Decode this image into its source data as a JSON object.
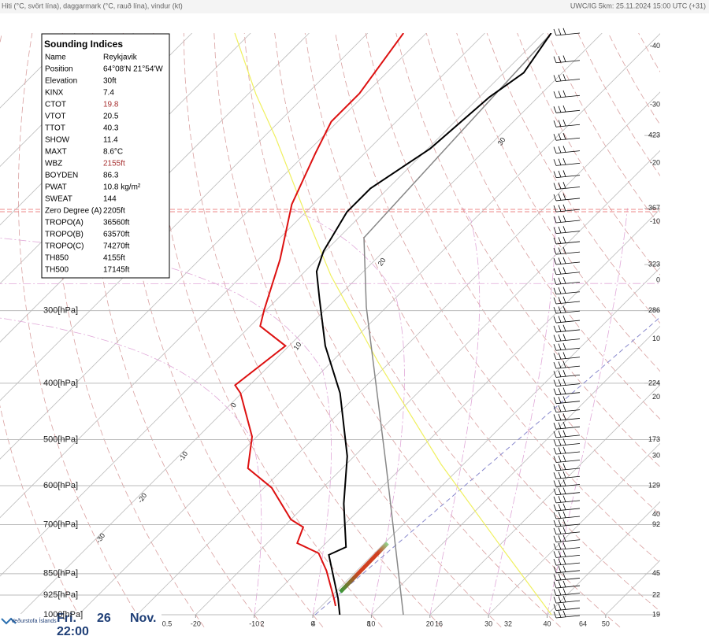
{
  "header": {
    "left": "Hiti (°C, svört lína), daggarmark (°C, rauð lína), vindur (kt)",
    "right": "UWC/IG 5km: 25.11.2024 15:00 UTC (+31)"
  },
  "indices": {
    "title": "Sounding Indices",
    "highlight_color": "#a83232",
    "highlighted": [
      "CTOT",
      "WBZ"
    ],
    "rows": [
      [
        "Name",
        "Reykjavik"
      ],
      [
        "Position",
        "64°08'N 21°54'W"
      ],
      [
        "Elevation",
        "30ft"
      ],
      [
        "KINX",
        "7.4"
      ],
      [
        "CTOT",
        "19.8"
      ],
      [
        "VTOT",
        "20.5"
      ],
      [
        "TTOT",
        "40.3"
      ],
      [
        "SHOW",
        "11.4"
      ],
      [
        "MAXT",
        "8.6°C"
      ],
      [
        "WBZ",
        "2155ft"
      ],
      [
        "BOYDEN",
        "86.3"
      ],
      [
        "PWAT",
        "10.8 kg/m²"
      ],
      [
        "SWEAT",
        "144"
      ],
      [
        "Zero Degree (A)",
        "2205ft"
      ],
      [
        "TROPO(A)",
        "36560ft"
      ],
      [
        "TROPO(B)",
        "63570ft"
      ],
      [
        "TROPO(C)",
        "74270ft"
      ],
      [
        "TH850",
        "4155ft"
      ],
      [
        "TH500",
        "17145ft"
      ]
    ]
  },
  "footer": {
    "logo": "Veðurstofa Íslands",
    "day": "Fri.",
    "date": "26",
    "month": "Nov.",
    "time": "22:00"
  },
  "chart_data": {
    "type": "skewt",
    "log_scale": true,
    "ylim": [
      1000,
      100
    ],
    "xlim": [
      -53.4,
      59.3
    ],
    "yticks": [
      {
        "value": 300,
        "label": "300[hPa]"
      },
      {
        "value": 400,
        "label": "400[hPa]"
      },
      {
        "value": 500,
        "label": "500[hPa]"
      },
      {
        "value": 600,
        "label": "600[hPa]"
      },
      {
        "value": 700,
        "label": "700[hPa]"
      },
      {
        "value": 850,
        "label": "850[hPa]"
      },
      {
        "value": 925,
        "label": "925[hPa]"
      },
      {
        "value": 1000,
        "label": "1000[hPa]"
      }
    ],
    "xticks": [
      -20,
      -10,
      0,
      10,
      20,
      30,
      40,
      50
    ],
    "right_ticks": [
      -40,
      -30,
      -20,
      -10,
      0,
      10,
      20,
      30,
      40
    ],
    "mixing_ratio_labels": [
      0.5,
      2,
      4,
      8,
      16,
      32,
      64
    ],
    "diagonal_labels": [
      -30,
      -20,
      -10,
      0,
      10,
      20,
      30
    ],
    "height_labels": {
      "pressures": [
        150,
        200,
        250,
        300,
        400,
        500,
        600,
        700,
        850,
        925,
        1000
      ],
      "labels": [
        "423",
        "367",
        "323",
        "286",
        "224",
        "173",
        "129",
        "92",
        "45",
        "22",
        "19"
      ]
    },
    "series": [
      {
        "color": "#000000",
        "p": [
          1000,
          937,
          789,
          765,
          644,
          534,
          416,
          345,
          286,
          257,
          237,
          203,
          185,
          158,
          129,
          117,
          100
        ],
        "values": [
          4.6,
          1.5,
          -7.5,
          -5.9,
          -13.7,
          -21.2,
          -33.2,
          -43.8,
          -52.9,
          -58,
          -60.3,
          -63,
          -63,
          -59.6,
          -58.3,
          -56.6,
          -58.7
        ]
      },
      {
        "color": "#dd1111",
        "p": [
          966,
          937,
          840,
          784,
          753,
          707,
          686,
          605,
          560,
          494,
          416,
          403,
          345,
          319,
          300,
          245,
          197,
          161,
          142,
          127,
          100
        ],
        "values": [
          2.4,
          0.8,
          -5.2,
          -9.5,
          -14.9,
          -16.6,
          -20,
          -28.7,
          -36.1,
          -40.8,
          -50.2,
          -52.5,
          -50.6,
          -58.3,
          -60.3,
          -66.3,
          -73.7,
          -78.4,
          -81.1,
          -81.1,
          -83.9
        ]
      }
    ]
  }
}
